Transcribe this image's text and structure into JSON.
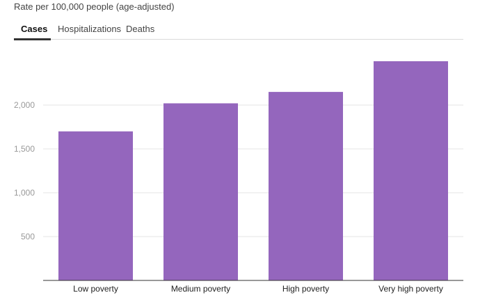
{
  "subtitle": "Rate per 100,000 people (age-adjusted)",
  "tabs": [
    {
      "label": "Cases",
      "active": true
    },
    {
      "label": "Hospitalizations",
      "active": false
    },
    {
      "label": "Deaths",
      "active": false
    }
  ],
  "colors": {
    "bar": "#9466bd",
    "grid": "#e6e6e6",
    "axis": "#333333"
  },
  "chart_data": {
    "type": "bar",
    "categories": [
      "Low poverty",
      "Medium poverty",
      "High poverty",
      "Very high poverty"
    ],
    "values": [
      1700,
      2020,
      2150,
      2500
    ],
    "yticks": [
      500,
      1000,
      1500,
      2000
    ],
    "ytick_labels": [
      "500",
      "1,000",
      "1,500",
      "2,000"
    ],
    "ylim": [
      0,
      2500
    ],
    "grid": true
  }
}
